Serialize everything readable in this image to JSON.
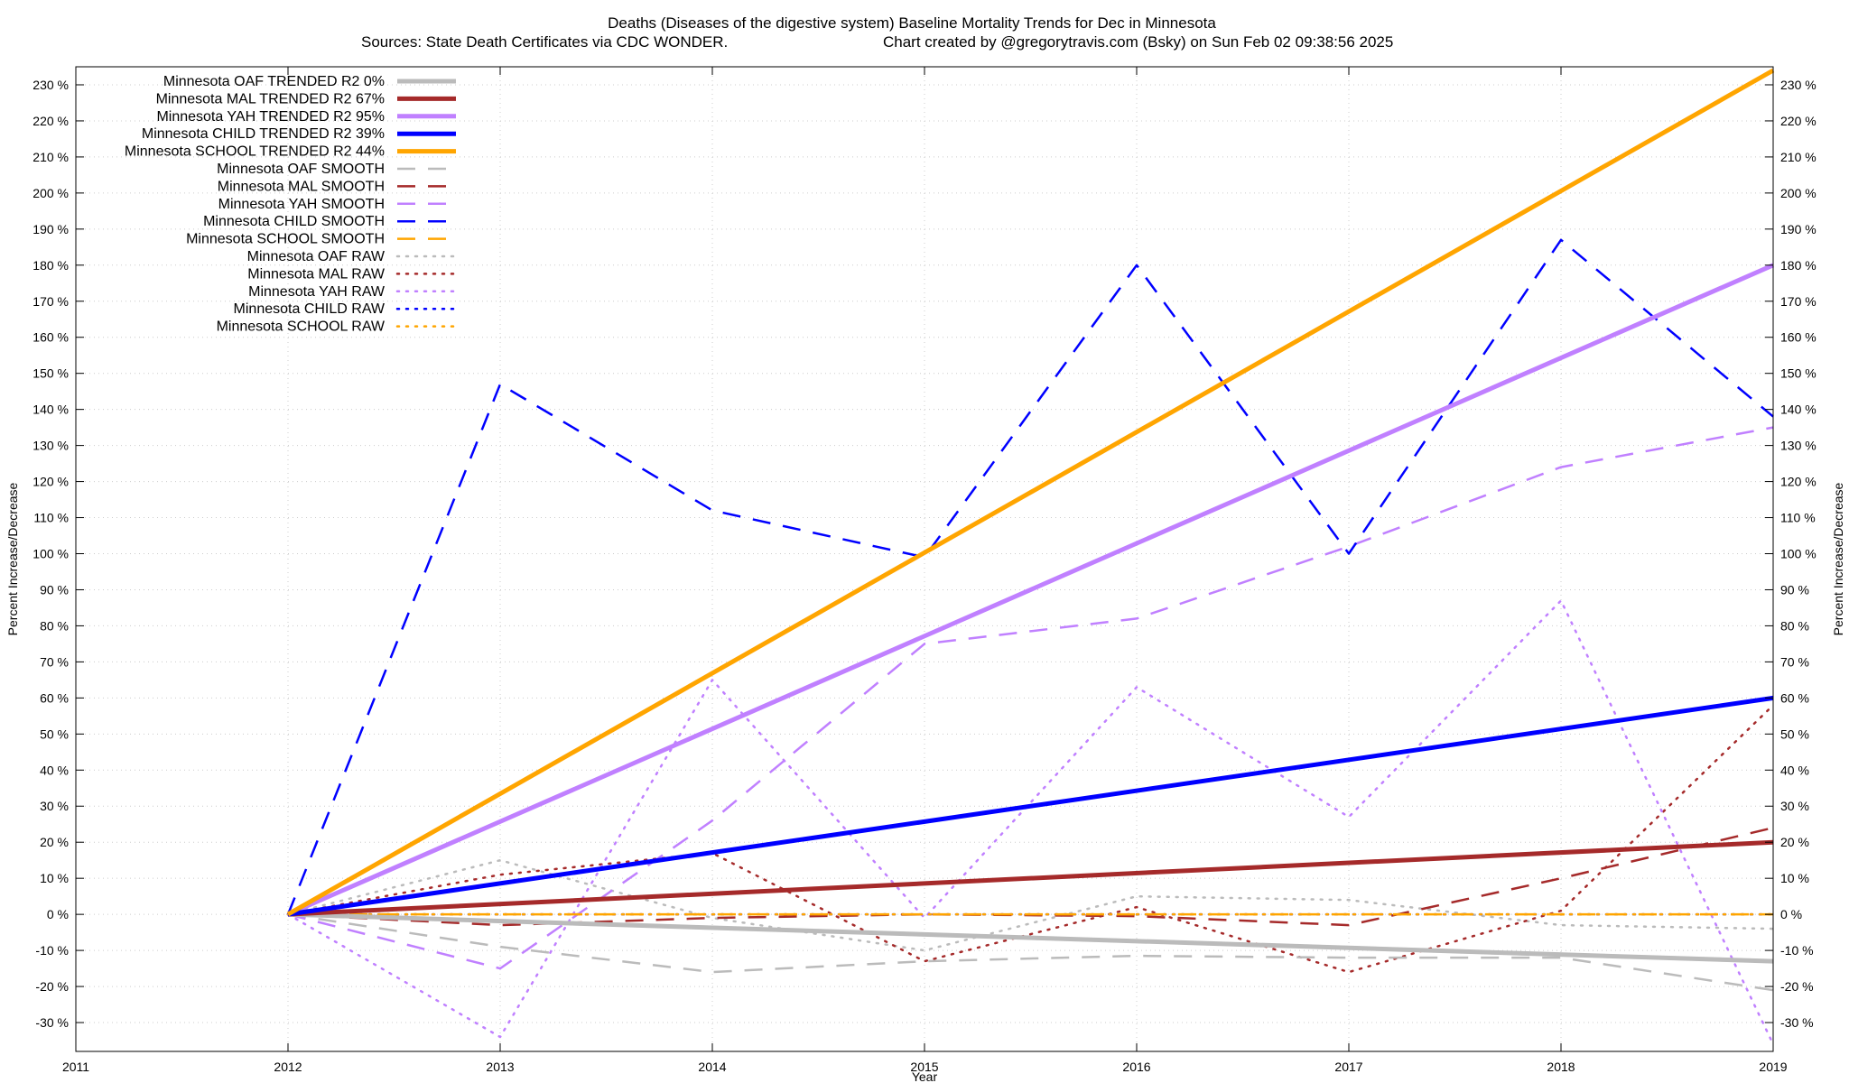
{
  "chart_data": {
    "type": "line",
    "title": "Deaths (Diseases of the digestive system)  Baseline Mortality Trends for Dec in Minnesota",
    "subtitle_left": "Sources: State Death Certificates via CDC WONDER.",
    "subtitle_right": "Chart created by @gregorytravis.com (Bsky) on Sun Feb 02 09:38:56 2025",
    "xlabel": "Year",
    "ylabel": "Percent Increase/Decrease",
    "ylabel_right": "Percent Increase/Decrease",
    "xlim": [
      2011,
      2019
    ],
    "ylim": [
      -38,
      235
    ],
    "x_ticks": [
      "2011",
      "2012",
      "2013",
      "2014",
      "2015",
      "2016",
      "2017",
      "2018",
      "2019"
    ],
    "y_ticks": [
      "-30 %",
      "-20 %",
      "-10 %",
      "0 %",
      "10 %",
      "20 %",
      "30 %",
      "40 %",
      "50 %",
      "60 %",
      "70 %",
      "80 %",
      "90 %",
      "100 %",
      "110 %",
      "120 %",
      "130 %",
      "140 %",
      "150 %",
      "160 %",
      "170 %",
      "180 %",
      "190 %",
      "200 %",
      "210 %",
      "220 %",
      "230 %"
    ],
    "grid": true,
    "legend_position": "top-left",
    "series": [
      {
        "name": "Minnesota OAF TRENDED R2  0%",
        "style": "trend",
        "color": "#bbbbbb",
        "x": [
          2012,
          2019
        ],
        "y": [
          0,
          -13
        ]
      },
      {
        "name": "Minnesota MAL TRENDED R2  67%",
        "style": "trend",
        "color": "#a52a2a",
        "x": [
          2012,
          2019
        ],
        "y": [
          0,
          20
        ]
      },
      {
        "name": "Minnesota YAH TRENDED R2  95%",
        "style": "trend",
        "color": "#c080ff",
        "x": [
          2012,
          2019
        ],
        "y": [
          0,
          180
        ]
      },
      {
        "name": "Minnesota CHILD TRENDED R2  39%",
        "style": "trend",
        "color": "#0000ff",
        "x": [
          2012,
          2019
        ],
        "y": [
          0,
          60
        ]
      },
      {
        "name": "Minnesota SCHOOL TRENDED R2  44%",
        "style": "trend",
        "color": "#ffa500",
        "x": [
          2012,
          2019
        ],
        "y": [
          0,
          234
        ]
      },
      {
        "name": "Minnesota OAF SMOOTH",
        "style": "smooth",
        "color": "#bbbbbb",
        "x": [
          2012,
          2013,
          2014,
          2015,
          2016,
          2017,
          2018,
          2019
        ],
        "y": [
          0,
          -9,
          -16,
          -13,
          -11.5,
          -12,
          -12,
          -21
        ]
      },
      {
        "name": "Minnesota MAL SMOOTH",
        "style": "smooth",
        "color": "#a52a2a",
        "x": [
          2012,
          2013,
          2014,
          2015,
          2016,
          2017,
          2018,
          2019
        ],
        "y": [
          0,
          -3,
          -1,
          0,
          -0.5,
          -3,
          10,
          24
        ]
      },
      {
        "name": "Minnesota YAH SMOOTH",
        "style": "smooth",
        "color": "#c080ff",
        "x": [
          2012,
          2013,
          2014,
          2015,
          2016,
          2017,
          2018,
          2019
        ],
        "y": [
          0,
          -15,
          26,
          75,
          82,
          102,
          124,
          135
        ]
      },
      {
        "name": "Minnesota CHILD SMOOTH",
        "style": "smooth",
        "color": "#0000ff",
        "x": [
          2012,
          2013,
          2014,
          2015,
          2016,
          2017,
          2018,
          2019
        ],
        "y": [
          0,
          147,
          112,
          99,
          180,
          100,
          187,
          138
        ]
      },
      {
        "name": "Minnesota SCHOOL SMOOTH",
        "style": "smooth",
        "color": "#ffa500",
        "x": [
          2012,
          2013,
          2014,
          2015,
          2016,
          2017,
          2018,
          2019
        ],
        "y": [
          0,
          0,
          0,
          0,
          0,
          0,
          0,
          0
        ]
      },
      {
        "name": "Minnesota OAF RAW",
        "style": "raw",
        "color": "#bbbbbb",
        "x": [
          2012,
          2013,
          2014,
          2015,
          2016,
          2017,
          2018,
          2019
        ],
        "y": [
          0,
          15,
          -1,
          -10,
          5,
          4,
          -3,
          -4
        ]
      },
      {
        "name": "Minnesota MAL RAW",
        "style": "raw",
        "color": "#a52a2a",
        "x": [
          2012,
          2013,
          2014,
          2015,
          2016,
          2017,
          2018,
          2019
        ],
        "y": [
          0,
          11,
          17,
          -13,
          2,
          -16,
          1,
          58
        ]
      },
      {
        "name": "Minnesota YAH RAW",
        "style": "raw",
        "color": "#c080ff",
        "x": [
          2012,
          2013,
          2014,
          2015,
          2016,
          2017,
          2018,
          2019
        ],
        "y": [
          0,
          -34,
          65,
          -1,
          63,
          27,
          87,
          -36
        ]
      },
      {
        "name": "Minnesota CHILD RAW",
        "style": "raw",
        "color": "#0000ff",
        "x": [
          2012,
          2013,
          2014,
          2015,
          2016,
          2017,
          2018,
          2019
        ],
        "y": [
          0,
          0,
          0,
          0,
          0,
          0,
          0,
          0
        ]
      },
      {
        "name": "Minnesota SCHOOL RAW",
        "style": "raw",
        "color": "#ffa500",
        "x": [
          2012,
          2013,
          2014,
          2015,
          2016,
          2017,
          2018,
          2019
        ],
        "y": [
          0,
          0,
          0,
          0,
          0,
          0,
          0,
          0
        ]
      }
    ]
  }
}
